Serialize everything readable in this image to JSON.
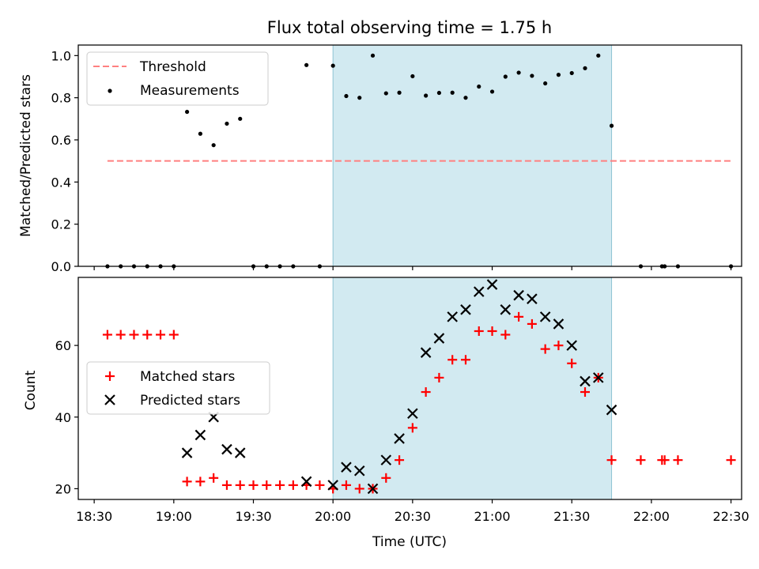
{
  "chart_data": [
    {
      "type": "scatter",
      "title": "Flux total observing time = 1.75 h",
      "xlabel": "",
      "ylabel": "Matched/Predicted stars",
      "xlim": [
        "18:24",
        "22:34"
      ],
      "ylim": [
        0,
        1.05
      ],
      "yticks": [
        "0.0",
        "0.2",
        "0.4",
        "0.6",
        "0.8",
        "1.0"
      ],
      "shaded_region": {
        "start": "20:00",
        "end": "21:45",
        "color": "#add8e6"
      },
      "legend_placement": "upper-left",
      "series": [
        {
          "name": "Threshold",
          "style": "dashed-line",
          "color": "#ff8080",
          "points": [
            [
              "18:35",
              0.5
            ],
            [
              "22:30",
              0.5
            ]
          ]
        },
        {
          "name": "Measurements",
          "style": "dot",
          "color": "#000000",
          "points": [
            [
              "18:35",
              0.0
            ],
            [
              "18:40",
              0.0
            ],
            [
              "18:45",
              0.0
            ],
            [
              "18:50",
              0.0
            ],
            [
              "18:55",
              0.0
            ],
            [
              "19:00",
              0.0
            ],
            [
              "19:05",
              0.733
            ],
            [
              "19:10",
              0.629
            ],
            [
              "19:15",
              0.575
            ],
            [
              "19:20",
              0.677
            ],
            [
              "19:25",
              0.7
            ],
            [
              "19:30",
              0.0
            ],
            [
              "19:35",
              0.0
            ],
            [
              "19:40",
              0.0
            ],
            [
              "19:45",
              0.0
            ],
            [
              "19:50",
              0.955
            ],
            [
              "19:55",
              0.0
            ],
            [
              "20:00",
              0.952
            ],
            [
              "20:05",
              0.808
            ],
            [
              "20:10",
              0.8
            ],
            [
              "20:15",
              1.0
            ],
            [
              "20:20",
              0.821
            ],
            [
              "20:25",
              0.824
            ],
            [
              "20:30",
              0.902
            ],
            [
              "20:35",
              0.81
            ],
            [
              "20:40",
              0.823
            ],
            [
              "20:45",
              0.824
            ],
            [
              "20:50",
              0.8
            ],
            [
              "20:55",
              0.853
            ],
            [
              "21:00",
              0.829
            ],
            [
              "21:05",
              0.9
            ],
            [
              "21:10",
              0.919
            ],
            [
              "21:15",
              0.904
            ],
            [
              "21:20",
              0.868
            ],
            [
              "21:25",
              0.909
            ],
            [
              "21:30",
              0.917
            ],
            [
              "21:35",
              0.94
            ],
            [
              "21:40",
              1.0
            ],
            [
              "21:45",
              0.667
            ],
            [
              "21:56",
              0.0
            ],
            [
              "22:04",
              0.0
            ],
            [
              "22:05",
              0.0
            ],
            [
              "22:10",
              0.0
            ],
            [
              "22:30",
              0.0
            ]
          ]
        }
      ]
    },
    {
      "type": "scatter",
      "title": "",
      "xlabel": "Time (UTC)",
      "ylabel": "Count",
      "xlim": [
        "18:24",
        "22:34"
      ],
      "ylim": [
        17,
        79
      ],
      "xticks": [
        "18:30",
        "19:00",
        "19:30",
        "20:00",
        "20:30",
        "21:00",
        "21:30",
        "22:00",
        "22:30"
      ],
      "yticks": [
        "20",
        "40",
        "60"
      ],
      "shaded_region": {
        "start": "20:00",
        "end": "21:45",
        "color": "#add8e6"
      },
      "legend_placement": "center-left",
      "series": [
        {
          "name": "Matched stars",
          "style": "plus",
          "color": "#ff0000",
          "points": [
            [
              "18:35",
              63
            ],
            [
              "18:40",
              63
            ],
            [
              "18:45",
              63
            ],
            [
              "18:50",
              63
            ],
            [
              "18:55",
              63
            ],
            [
              "19:00",
              63
            ],
            [
              "19:05",
              22
            ],
            [
              "19:10",
              22
            ],
            [
              "19:15",
              23
            ],
            [
              "19:20",
              21
            ],
            [
              "19:25",
              21
            ],
            [
              "19:30",
              21
            ],
            [
              "19:35",
              21
            ],
            [
              "19:40",
              21
            ],
            [
              "19:45",
              21
            ],
            [
              "19:50",
              21
            ],
            [
              "19:55",
              21
            ],
            [
              "20:00",
              20
            ],
            [
              "20:05",
              21
            ],
            [
              "20:10",
              20
            ],
            [
              "20:15",
              20
            ],
            [
              "20:20",
              23
            ],
            [
              "20:25",
              28
            ],
            [
              "20:30",
              37
            ],
            [
              "20:35",
              47
            ],
            [
              "20:40",
              51
            ],
            [
              "20:45",
              56
            ],
            [
              "20:50",
              56
            ],
            [
              "20:55",
              64
            ],
            [
              "21:00",
              64
            ],
            [
              "21:05",
              63
            ],
            [
              "21:10",
              68
            ],
            [
              "21:15",
              66
            ],
            [
              "21:20",
              59
            ],
            [
              "21:25",
              60
            ],
            [
              "21:30",
              55
            ],
            [
              "21:35",
              47
            ],
            [
              "21:40",
              51
            ],
            [
              "21:45",
              28
            ],
            [
              "21:56",
              28
            ],
            [
              "22:04",
              28
            ],
            [
              "22:05",
              28
            ],
            [
              "22:10",
              28
            ],
            [
              "22:30",
              28
            ]
          ]
        },
        {
          "name": "Predicted stars",
          "style": "x",
          "color": "#000000",
          "points": [
            [
              "19:05",
              30
            ],
            [
              "19:10",
              35
            ],
            [
              "19:15",
              40
            ],
            [
              "19:20",
              31
            ],
            [
              "19:25",
              30
            ],
            [
              "19:50",
              22
            ],
            [
              "20:00",
              21
            ],
            [
              "20:05",
              26
            ],
            [
              "20:10",
              25
            ],
            [
              "20:15",
              20
            ],
            [
              "20:20",
              28
            ],
            [
              "20:25",
              34
            ],
            [
              "20:30",
              41
            ],
            [
              "20:35",
              58
            ],
            [
              "20:40",
              62
            ],
            [
              "20:45",
              68
            ],
            [
              "20:50",
              70
            ],
            [
              "20:55",
              75
            ],
            [
              "21:00",
              77
            ],
            [
              "21:05",
              70
            ],
            [
              "21:10",
              74
            ],
            [
              "21:15",
              73
            ],
            [
              "21:20",
              68
            ],
            [
              "21:25",
              66
            ],
            [
              "21:30",
              60
            ],
            [
              "21:35",
              50
            ],
            [
              "21:40",
              51
            ],
            [
              "21:45",
              42
            ]
          ]
        }
      ]
    }
  ]
}
